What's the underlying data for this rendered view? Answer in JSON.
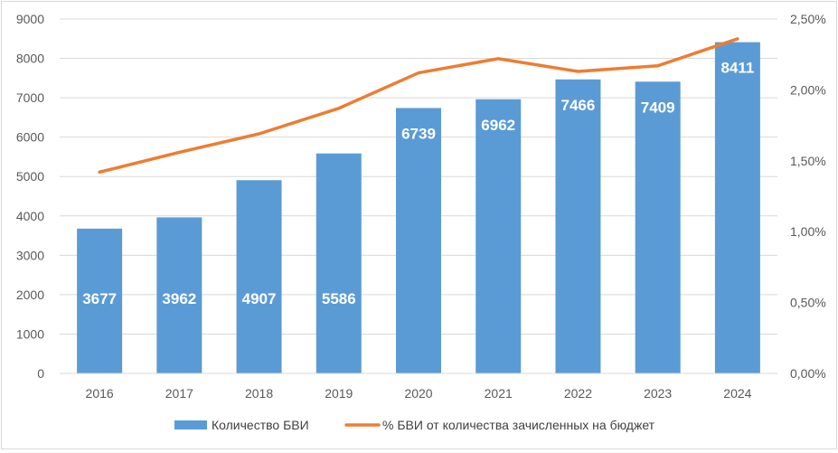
{
  "chart_data": {
    "type": "bar",
    "categories": [
      "2016",
      "2017",
      "2018",
      "2019",
      "2020",
      "2021",
      "2022",
      "2023",
      "2024"
    ],
    "series": [
      {
        "name": "Количество БВИ",
        "type": "bar",
        "axis": "left",
        "color": "#5b9bd5",
        "values": [
          3677,
          3962,
          4907,
          5586,
          6739,
          6962,
          7466,
          7409,
          8411
        ],
        "data_labels": [
          "3677",
          "3962",
          "4907",
          "5586",
          "6739",
          "6962",
          "7466",
          "7409",
          "8411"
        ]
      },
      {
        "name": "% БВИ от количества зачисленных на бюджет",
        "type": "line",
        "axis": "right",
        "color": "#ed7d31",
        "values": [
          1.42,
          1.56,
          1.69,
          1.87,
          2.12,
          2.22,
          2.13,
          2.17,
          2.36
        ]
      }
    ],
    "y_left": {
      "ylim": [
        0,
        9000
      ],
      "ticks": [
        0,
        1000,
        2000,
        3000,
        4000,
        5000,
        6000,
        7000,
        8000,
        9000
      ],
      "tick_labels": [
        "0",
        "1000",
        "2000",
        "3000",
        "4000",
        "5000",
        "6000",
        "7000",
        "8000",
        "9000"
      ]
    },
    "y_right": {
      "ylim": [
        0,
        2.5
      ],
      "ticks": [
        0,
        0.5,
        1.0,
        1.5,
        2.0,
        2.5
      ],
      "tick_labels": [
        "0,00%",
        "0,50%",
        "1,00%",
        "1,50%",
        "2,00%",
        "2,50%"
      ]
    },
    "grid": true,
    "legend": "bottom"
  }
}
